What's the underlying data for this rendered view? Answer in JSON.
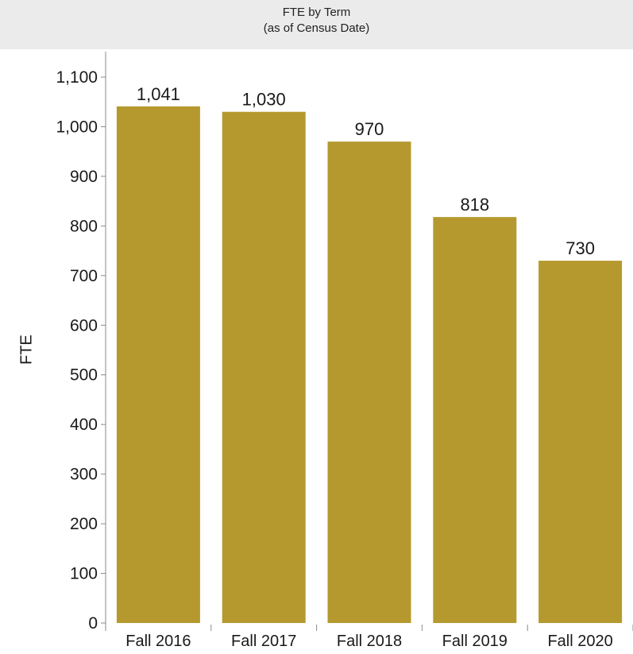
{
  "header": {
    "title_line1": "FTE by Term",
    "title_line2": "(as of Census Date)"
  },
  "chart_data": {
    "type": "bar",
    "title": "FTE by Term",
    "subtitle": "(as of Census Date)",
    "xlabel": "",
    "ylabel": "FTE",
    "categories": [
      "Fall 2016",
      "Fall 2017",
      "Fall 2018",
      "Fall 2019",
      "Fall 2020"
    ],
    "values": [
      1041,
      1030,
      970,
      818,
      730
    ],
    "value_labels": [
      "1,041",
      "1,030",
      "970",
      "818",
      "730"
    ],
    "ylim": [
      0,
      1100
    ],
    "yticks": [
      0,
      100,
      200,
      300,
      400,
      500,
      600,
      700,
      800,
      900,
      1000,
      1100
    ],
    "ytick_labels": [
      "0",
      "100",
      "200",
      "300",
      "400",
      "500",
      "600",
      "700",
      "800",
      "900",
      "1,000",
      "1,100"
    ],
    "grid": false,
    "legend": "none",
    "bar_color": "#b5992e"
  }
}
